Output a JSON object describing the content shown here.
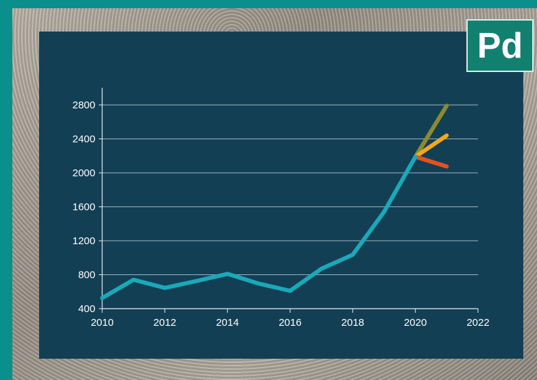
{
  "badge": {
    "label": "Pd"
  },
  "colors": {
    "historical": "#1aa9b8",
    "forecast_high": "#8c8a2e",
    "forecast_mid": "#f2a81d",
    "forecast_low": "#e4521e",
    "panel": "#133f55",
    "frame": "#0b8f8c"
  },
  "chart_data": {
    "type": "line",
    "title": "",
    "xlabel": "",
    "ylabel": "",
    "xlim": [
      2010,
      2022
    ],
    "ylim": [
      400,
      2800
    ],
    "grid": true,
    "x_ticks": [
      2010,
      2012,
      2014,
      2016,
      2018,
      2020,
      2022
    ],
    "y_ticks": [
      400,
      800,
      1200,
      1600,
      2000,
      2400,
      2800
    ],
    "series": [
      {
        "color": "#1aa9b8",
        "points": [
          [
            2010,
            525
          ],
          [
            2011,
            740
          ],
          [
            2012,
            645
          ],
          [
            2013,
            725
          ],
          [
            2014,
            810
          ],
          [
            2015,
            695
          ],
          [
            2016,
            610
          ],
          [
            2017,
            870
          ],
          [
            2018,
            1035
          ],
          [
            2019,
            1540
          ],
          [
            2020,
            2190
          ]
        ]
      },
      {
        "color": "#8c8a2e",
        "points": [
          [
            2020,
            2190
          ],
          [
            2021,
            2790
          ]
        ]
      },
      {
        "color": "#f2a81d",
        "points": [
          [
            2020,
            2190
          ],
          [
            2021,
            2440
          ]
        ]
      },
      {
        "color": "#e4521e",
        "points": [
          [
            2020,
            2190
          ],
          [
            2021,
            2075
          ]
        ]
      }
    ]
  }
}
